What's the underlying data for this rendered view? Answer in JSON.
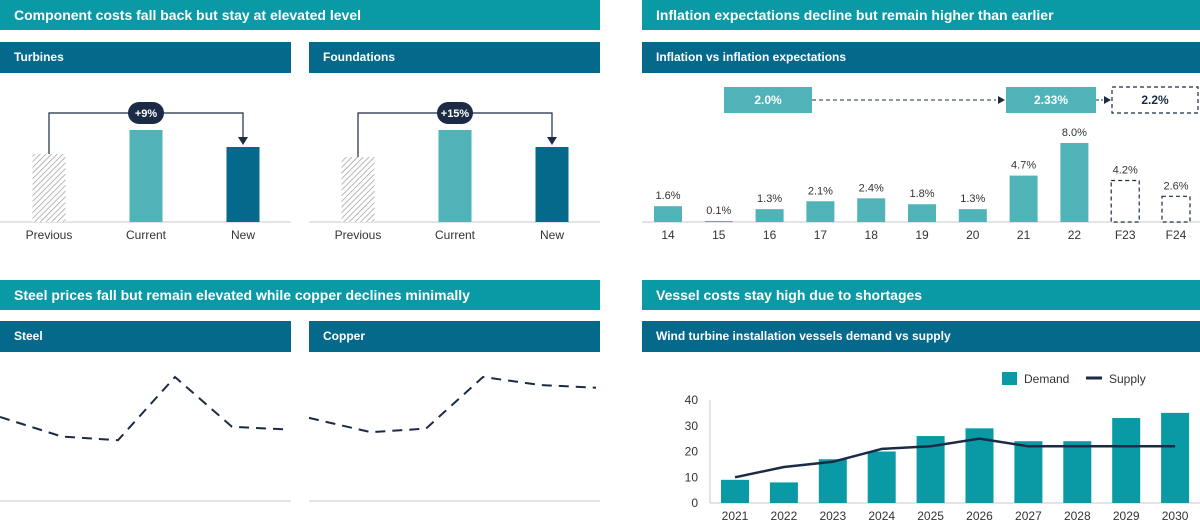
{
  "colors": {
    "teal": "#0a9aa5",
    "dark_teal": "#05698c",
    "light_teal": "#4fb3b8",
    "navy": "#1c2b45",
    "axis": "#c8c8c8"
  },
  "sections": {
    "components": {
      "title": "Component costs fall back but stay at elevated level"
    },
    "inflation": {
      "title": "Inflation expectations decline but remain higher than earlier"
    },
    "steel": {
      "title": "Steel prices fall but remain elevated while copper declines minimally"
    },
    "vessels": {
      "title": "Vessel costs stay high due to shortages"
    }
  },
  "panels": {
    "turbines": {
      "title": "Turbines"
    },
    "foundations": {
      "title": "Foundations"
    },
    "inflation": {
      "title": "Inflation vs inflation expectations"
    },
    "steel": {
      "title": "Steel"
    },
    "copper": {
      "title": "Copper"
    },
    "vessels": {
      "title": "Wind turbine installation vessels demand vs supply"
    }
  },
  "chart_data": [
    {
      "id": "turbines",
      "type": "bar",
      "title": "Turbines",
      "categories": [
        "Previous",
        "Current",
        "New"
      ],
      "values": [
        0.68,
        0.92,
        0.75
      ],
      "styles": [
        "hatched",
        "light",
        "dark"
      ],
      "change_label": "+9%"
    },
    {
      "id": "foundations",
      "type": "bar",
      "title": "Foundations",
      "categories": [
        "Previous",
        "Current",
        "New"
      ],
      "values": [
        0.65,
        0.92,
        0.75
      ],
      "styles": [
        "hatched",
        "light",
        "dark"
      ],
      "change_label": "+15%"
    },
    {
      "id": "inflation",
      "type": "bar",
      "title": "Inflation vs inflation expectations",
      "categories": [
        "14",
        "15",
        "16",
        "17",
        "18",
        "19",
        "20",
        "21",
        "22",
        "F23",
        "F24"
      ],
      "values": [
        1.6,
        0.1,
        1.3,
        2.1,
        2.4,
        1.8,
        1.3,
        4.7,
        8.0,
        4.2,
        2.6
      ],
      "labels": [
        "1.6%",
        "0.1%",
        "1.3%",
        "2.1%",
        "2.4%",
        "1.8%",
        "1.3%",
        "4.7%",
        "8.0%",
        "4.2%",
        "2.6%"
      ],
      "forecast": [
        false,
        false,
        false,
        false,
        false,
        false,
        false,
        false,
        false,
        true,
        true
      ],
      "expectation_boxes": [
        "2.0%",
        "2.33%",
        "2.2%"
      ]
    },
    {
      "id": "steel",
      "type": "line",
      "title": "Steel",
      "values": [
        0.55,
        0.33,
        0.29,
        1.0,
        0.44,
        0.41
      ]
    },
    {
      "id": "copper",
      "type": "line",
      "title": "Copper",
      "values": [
        0.54,
        0.38,
        0.42,
        1.0,
        0.91,
        0.88
      ]
    },
    {
      "id": "vessels",
      "type": "bar",
      "title": "Wind turbine installation vessels demand vs supply",
      "categories": [
        "2021",
        "2022",
        "2023",
        "2024",
        "2025",
        "2026",
        "2027",
        "2028",
        "2029",
        "2030"
      ],
      "series": [
        {
          "name": "Demand",
          "kind": "bar",
          "values": [
            9,
            8,
            17,
            20,
            26,
            29,
            24,
            24,
            33,
            35
          ]
        },
        {
          "name": "Supply",
          "kind": "line",
          "values": [
            10,
            14,
            16,
            21,
            22,
            25,
            22,
            22,
            22,
            22
          ]
        }
      ],
      "ylim": [
        0,
        40
      ],
      "yticks": [
        "0",
        "10",
        "20",
        "30",
        "40"
      ],
      "legend": {
        "demand": "Demand",
        "supply": "Supply",
        "position": "top-right"
      }
    }
  ]
}
